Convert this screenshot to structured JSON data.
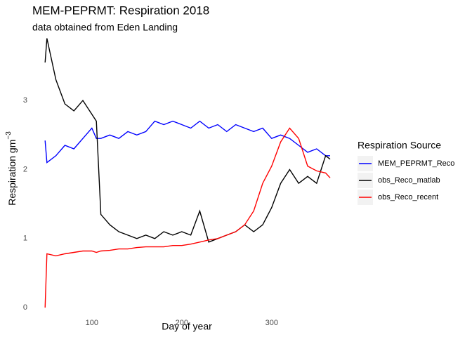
{
  "chart_data": {
    "type": "line",
    "title": "MEM-PEPRMT: Respiration 2018",
    "subtitle": "data obtained from Eden Landing",
    "xlabel": "Day of year",
    "ylabel": "Respiration gm",
    "ylabel_exponent": "−3",
    "legend_title": "Respiration Source",
    "legend_position": "right",
    "grid": false,
    "x": [
      48,
      50,
      60,
      70,
      80,
      90,
      100,
      105,
      110,
      120,
      130,
      140,
      150,
      160,
      170,
      180,
      190,
      200,
      210,
      220,
      230,
      240,
      250,
      260,
      270,
      280,
      290,
      300,
      310,
      320,
      330,
      340,
      350,
      360,
      365
    ],
    "series": [
      {
        "name": "MEM_PEPRMT_Reco",
        "color": "#0000ff",
        "values": [
          2.42,
          2.1,
          2.2,
          2.35,
          2.3,
          2.45,
          2.6,
          2.45,
          2.45,
          2.5,
          2.45,
          2.55,
          2.5,
          2.55,
          2.7,
          2.65,
          2.7,
          2.65,
          2.6,
          2.7,
          2.6,
          2.65,
          2.55,
          2.65,
          2.6,
          2.55,
          2.6,
          2.45,
          2.5,
          2.45,
          2.35,
          2.25,
          2.3,
          2.2,
          2.2
        ]
      },
      {
        "name": "obs_Reco_matlab",
        "color": "#000000",
        "values": [
          3.55,
          3.9,
          3.3,
          2.95,
          2.85,
          3.0,
          2.8,
          2.7,
          1.35,
          1.2,
          1.1,
          1.05,
          1.0,
          1.05,
          1.0,
          1.1,
          1.05,
          1.1,
          1.05,
          1.4,
          0.95,
          1.0,
          1.05,
          1.1,
          1.2,
          1.1,
          1.2,
          1.45,
          1.8,
          2.0,
          1.8,
          1.9,
          1.8,
          2.2,
          2.15
        ]
      },
      {
        "name": "obs_Reco_recent",
        "color": "#ff0000",
        "values": [
          0.0,
          0.78,
          0.75,
          0.78,
          0.8,
          0.82,
          0.82,
          0.8,
          0.82,
          0.83,
          0.85,
          0.85,
          0.87,
          0.88,
          0.88,
          0.88,
          0.9,
          0.9,
          0.92,
          0.95,
          0.98,
          1.0,
          1.05,
          1.1,
          1.2,
          1.4,
          1.8,
          2.05,
          2.4,
          2.6,
          2.45,
          2.05,
          1.98,
          1.95,
          1.88
        ]
      }
    ],
    "xlim": [
      33,
      372
    ],
    "xticks": [
      100,
      200,
      300
    ],
    "ylim": [
      -0.12,
      4.15
    ],
    "yticks": [
      0,
      1,
      2,
      3
    ]
  }
}
